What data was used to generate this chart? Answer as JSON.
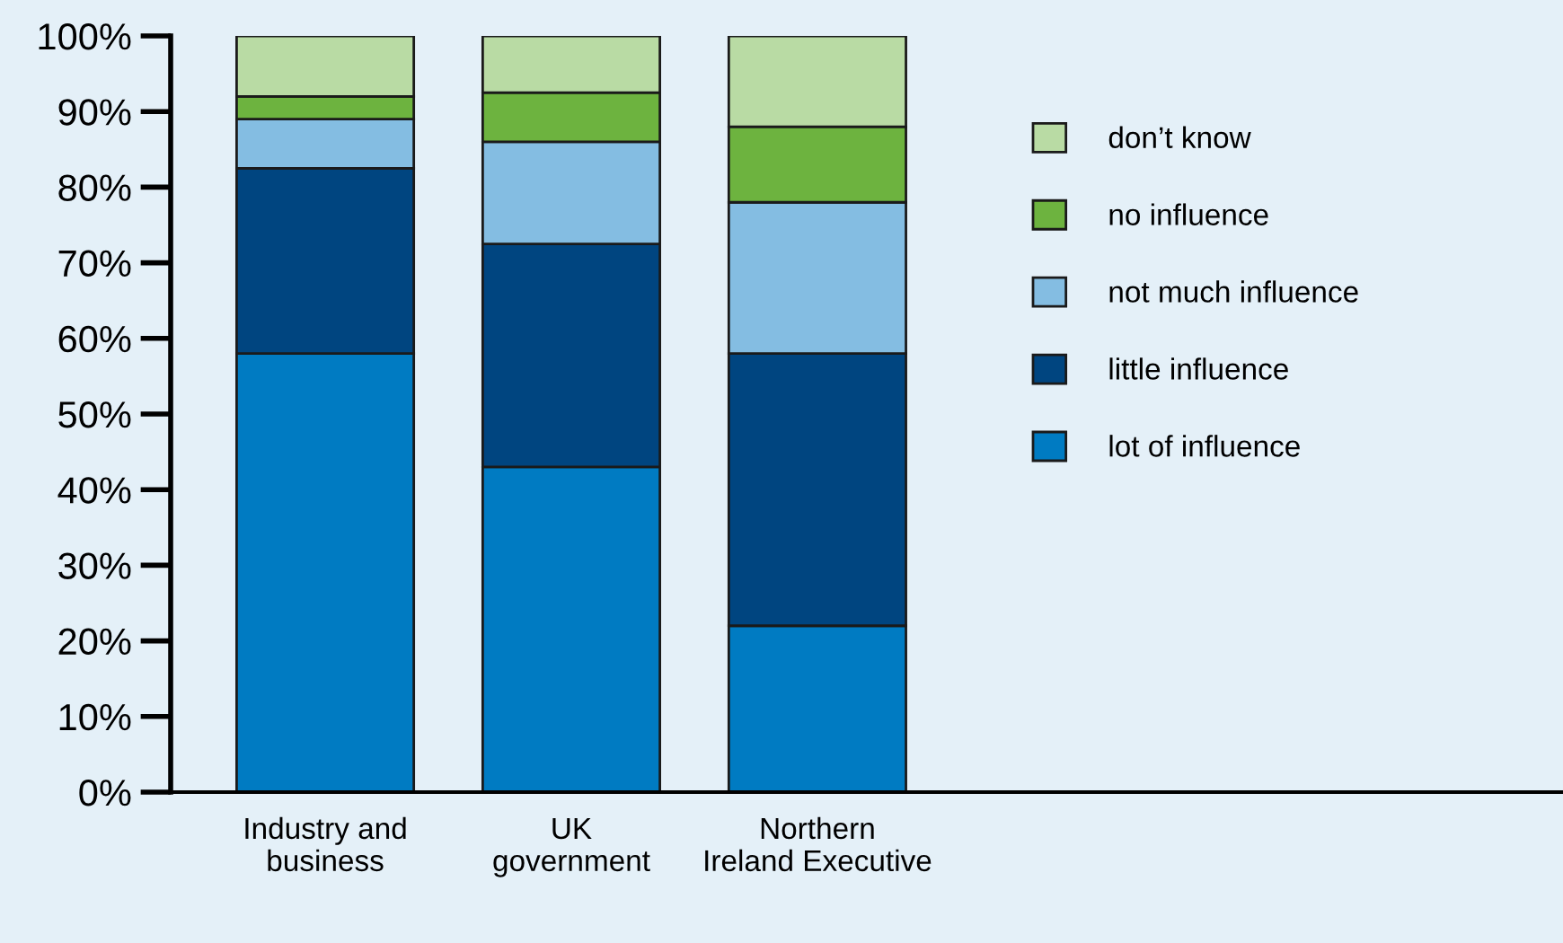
{
  "chart_data": {
    "type": "bar",
    "stacked": true,
    "categories": [
      "Industry and\nbusiness",
      "UK\ngovernment",
      "Northern\nIreland Executive"
    ],
    "series": [
      {
        "name": "lot of influence",
        "color": "#007bc2",
        "values": [
          58,
          43,
          22
        ]
      },
      {
        "name": "little influence",
        "color": "#004580",
        "values": [
          24.5,
          29.5,
          36
        ]
      },
      {
        "name": "not much influence",
        "color": "#84bde2",
        "values": [
          6.5,
          13.5,
          20
        ]
      },
      {
        "name": "no influence",
        "color": "#6db33f",
        "values": [
          3,
          6.5,
          10
        ]
      },
      {
        "name": "don’t know",
        "color": "#b9dba4",
        "values": [
          8,
          7.5,
          12
        ]
      }
    ],
    "ylim": [
      0,
      100
    ],
    "yticks": [
      {
        "value": 0,
        "label": "0%"
      },
      {
        "value": 10,
        "label": "10%"
      },
      {
        "value": 20,
        "label": "20%"
      },
      {
        "value": 30,
        "label": "30%"
      },
      {
        "value": 40,
        "label": "40%"
      },
      {
        "value": 50,
        "label": "50%"
      },
      {
        "value": 60,
        "label": "60%"
      },
      {
        "value": 70,
        "label": "70%"
      },
      {
        "value": 80,
        "label": "80%"
      },
      {
        "value": 90,
        "label": "90%"
      },
      {
        "value": 100,
        "label": "100%"
      }
    ],
    "grid": false,
    "legend": "right"
  }
}
